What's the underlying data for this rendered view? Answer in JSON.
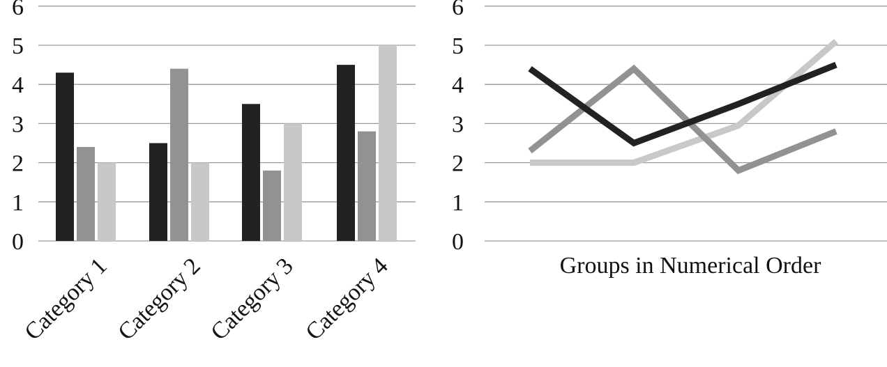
{
  "chart_data": [
    {
      "type": "bar",
      "categories": [
        "Category 1",
        "Category 2",
        "Category 3",
        "Category 4"
      ],
      "series": [
        {
          "values": [
            4.3,
            2.5,
            3.5,
            4.5
          ],
          "color": "#222222"
        },
        {
          "values": [
            2.4,
            4.4,
            1.8,
            2.8
          ],
          "color": "#929292"
        },
        {
          "values": [
            2.0,
            2.0,
            3.0,
            5.0
          ],
          "color": "#c8c8c8"
        }
      ],
      "yticks": [
        "0",
        "1",
        "2",
        "3",
        "4",
        "5",
        "6"
      ],
      "ylim": [
        0,
        6
      ],
      "grid": true,
      "legend": "none"
    },
    {
      "type": "line",
      "xlabel": "Groups in Numerical Order",
      "series": [
        {
          "values": [
            4.4,
            2.5,
            3.5,
            4.5
          ],
          "color": "#222222"
        },
        {
          "values": [
            2.3,
            4.4,
            1.8,
            2.8
          ],
          "color": "#929292"
        },
        {
          "values": [
            2.0,
            2.0,
            2.95,
            5.1
          ],
          "color": "#c8c8c8"
        }
      ],
      "yticks": [
        "0",
        "1",
        "2",
        "3",
        "4",
        "5",
        "6"
      ],
      "ylim": [
        0,
        6
      ],
      "grid": true,
      "legend": "none"
    }
  ]
}
